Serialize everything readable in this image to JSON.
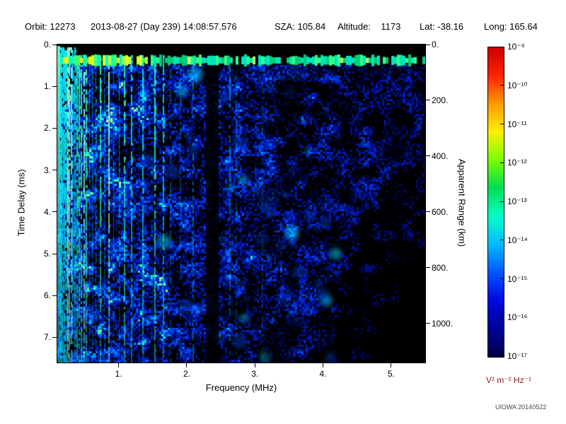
{
  "header": {
    "segments": [
      "Orbit: 12273",
      "2013-08-27 (Day 239) 14:08:57.576",
      "SZA: 105.84",
      "Altitude:    1173",
      "Lat: -38.16",
      "Long: 165.64"
    ]
  },
  "chart_data": {
    "type": "heatmap",
    "subtype": "radar-sounder-ionogram",
    "xlabel": "Frequency (MHz)",
    "ylabel_left": "Time Delay (ms)",
    "ylabel_right": "Apparent Range (km)",
    "x_range": [
      0.1,
      5.5
    ],
    "y_range": [
      0,
      7.6
    ],
    "x_ticks": [
      1,
      2,
      3,
      4,
      5
    ],
    "x_tick_labels": [
      "1.",
      "2.",
      "3.",
      "4.",
      "5."
    ],
    "y_ticks_left": [
      0,
      1,
      2,
      3,
      4,
      5,
      6,
      7
    ],
    "y_tick_labels_left": [
      "0.",
      "1.",
      "2.",
      "3.",
      "4.",
      "5.",
      "6.",
      "7."
    ],
    "y_ticks_right_km": [
      0,
      200,
      400,
      600,
      800,
      1000
    ],
    "y_tick_labels_right": [
      "0.",
      "200.",
      "400.",
      "600.",
      "800.",
      "1000."
    ],
    "range_per_ms_km": 150,
    "colorbar": {
      "labels": [
        "10⁻⁹",
        "10⁻¹⁰",
        "10⁻¹¹",
        "10⁻¹²",
        "10⁻¹³",
        "10⁻¹⁴",
        "10⁻¹⁵",
        "10⁻¹⁶",
        "10⁻¹⁷"
      ],
      "units": "V² m⁻² Hz⁻¹",
      "colors": [
        "#cc0000",
        "#ff2200",
        "#ff9900",
        "#ffee00",
        "#77ff00",
        "#00dd55",
        "#00ffc8",
        "#00bbff",
        "#0055ff",
        "#0008e0",
        "#000299",
        "#000045"
      ]
    },
    "features": {
      "surface_echo_delay_ms": 0.3,
      "plasma_harmonic_lines_max_mhz": 1.65,
      "absorption_gap_mhz": [
        2.28,
        2.47
      ],
      "background": "blue speckle noise, darker toward high frequency and long delay, black above surface echo band"
    }
  },
  "footer": {
    "credit": "UIOWA 20140522"
  }
}
